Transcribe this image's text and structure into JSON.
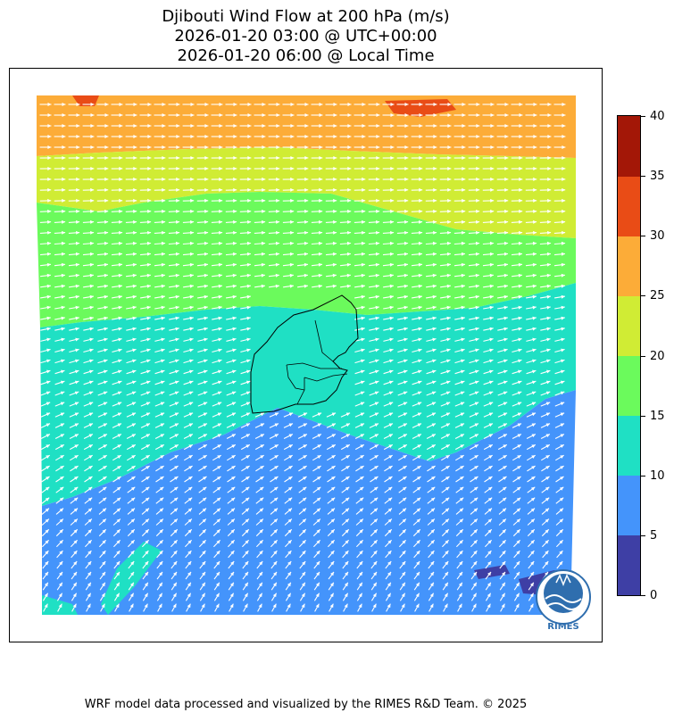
{
  "title": {
    "line1": "Djibouti Wind Flow at 200 hPa (m/s)",
    "line2": "2026-01-20 03:00 @ UTC+00:00",
    "line3": "2026-01-20 06:00 @ Local Time"
  },
  "map": {
    "country": "Djibouti",
    "variable": "wind speed",
    "level": "200 hPa",
    "units": "m/s",
    "arrow_color": "#ffffff",
    "boundary_color": "#000000"
  },
  "colorbar": {
    "levels": [
      0,
      5,
      10,
      15,
      20,
      25,
      30,
      35,
      40
    ],
    "tick_labels": [
      "0",
      "5",
      "10",
      "15",
      "20",
      "25",
      "30",
      "35",
      "40"
    ],
    "colors": [
      "#3e3fa5",
      "#4494fb",
      "#1fe0c4",
      "#6bfa5c",
      "#d0ec34",
      "#fcac38",
      "#e94c16",
      "#a31707"
    ]
  },
  "logo": {
    "text": "RIMES",
    "color": "#2f6eae"
  },
  "footer": "WRF model data processed and visualized by the RIMES R&D Team. © 2025"
}
